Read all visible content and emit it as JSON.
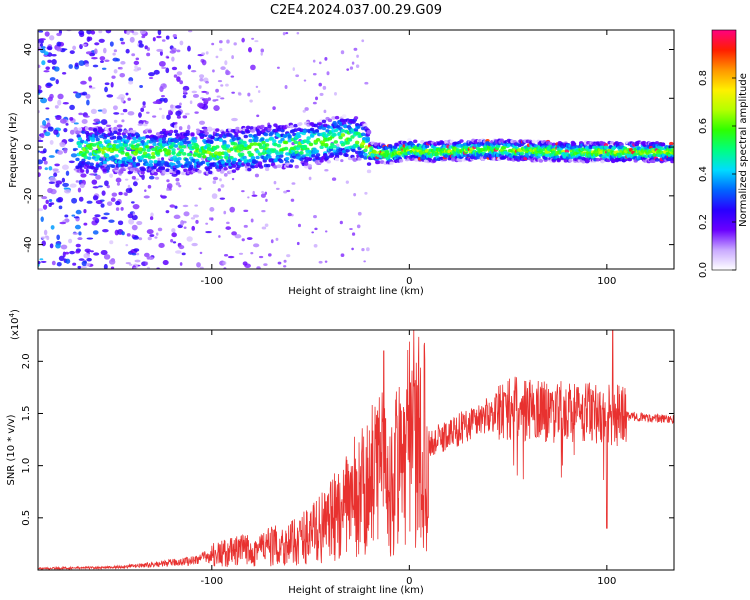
{
  "title": "C2E4.2024.037.00.29.G09",
  "chart_data": [
    {
      "type": "heatmap",
      "xlabel": "Height of straight line (km)",
      "ylabel": "Frequency (Hz)",
      "xlim": [
        -188,
        134
      ],
      "ylim": [
        -50,
        48
      ],
      "x_ticks": [
        -100,
        0,
        100
      ],
      "x_tick_labels": [
        "-100",
        "0",
        "100"
      ],
      "y_ticks": [
        -40,
        -20,
        0,
        20,
        40
      ],
      "y_tick_labels": [
        "-40",
        "-20",
        "0",
        "20",
        "40"
      ],
      "grid": false,
      "colorbar": {
        "label": "Normalized spectral amplitude",
        "range": [
          0,
          1
        ],
        "ticks": [
          0.0,
          0.2,
          0.4,
          0.6,
          0.8
        ],
        "tick_labels": [
          "0.0",
          "0.2",
          "0.4",
          "0.6",
          "0.8"
        ],
        "colors": [
          "#ffffff",
          "#c9a9ff",
          "#6a00ff",
          "#2800ff",
          "#0066ff",
          "#00dcff",
          "#00ff80",
          "#2eff00",
          "#b4ff00",
          "#fff000",
          "#ff9600",
          "#ff1e00",
          "#ff0080"
        ]
      },
      "ridge": {
        "description_x": [
          -188,
          -160,
          -130,
          -100,
          -70,
          -50,
          -35,
          -25,
          -20,
          -10,
          0,
          10,
          40,
          80,
          120,
          134
        ],
        "center_freq": [
          -2,
          -1,
          -2,
          -2,
          0,
          1,
          4,
          3,
          -2,
          -3,
          -1,
          -2,
          -1,
          -2,
          -2,
          -2
        ]
      }
    },
    {
      "type": "line",
      "xlabel": "Height of straight line (km)",
      "ylabel": "SNR (10 * v/v)",
      "y_multiplier": "(x10",
      "y_multiplier_exp": "4",
      "y_multiplier_close": ")",
      "xlim": [
        -188,
        134
      ],
      "ylim": [
        0,
        23000
      ],
      "x_ticks": [
        -100,
        0,
        100
      ],
      "x_tick_labels": [
        "-100",
        "0",
        "100"
      ],
      "y_ticks": [
        5000,
        10000,
        15000,
        20000
      ],
      "y_tick_labels": [
        "0.5",
        "1.0",
        "1.5",
        "2.0"
      ],
      "grid": false,
      "series": [
        {
          "color": "#e8312f",
          "envelope_x": [
            -188,
            -150,
            -130,
            -110,
            -100,
            -80,
            -60,
            -50,
            -40,
            -30,
            -22,
            -18,
            -12,
            -5,
            0,
            5,
            15,
            25,
            35,
            45,
            55,
            70,
            85,
            95,
            105,
            115,
            125,
            134
          ],
          "envelope_y": [
            150,
            250,
            500,
            900,
            1400,
            2000,
            2500,
            3500,
            4500,
            6000,
            7500,
            9000,
            7500,
            8500,
            10000,
            11500,
            12500,
            13500,
            14500,
            15200,
            15500,
            15300,
            15000,
            15100,
            14800,
            14700,
            14500,
            14500
          ],
          "spikes": [
            {
              "x": -13,
              "y": 21000
            },
            {
              "x": -12,
              "y": 14500
            },
            {
              "x": 48,
              "y": 17000
            },
            {
              "x": 85,
              "y": 17500
            },
            {
              "x": 100,
              "y": 4000
            },
            {
              "x": 103,
              "y": 23000
            }
          ]
        }
      ]
    }
  ]
}
